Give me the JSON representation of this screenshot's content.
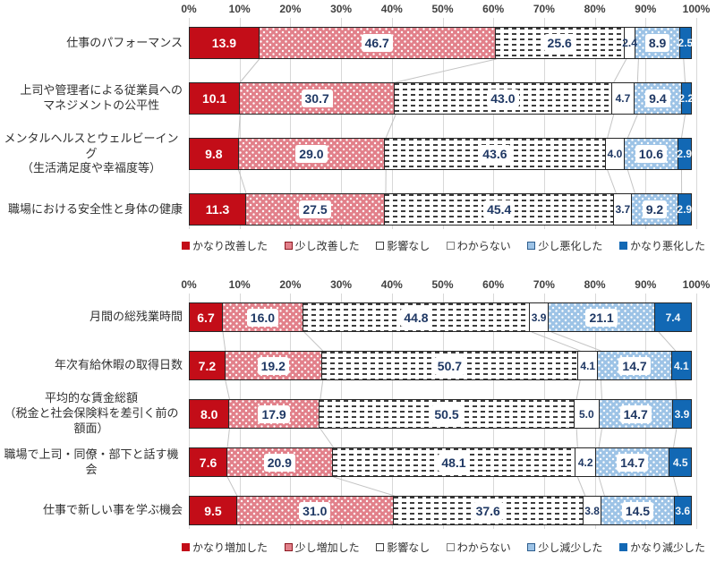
{
  "page": {
    "background": "#FFFFFF"
  },
  "colors": {
    "strong_red": "#C30D18",
    "light_red_dotted": "#E2808A",
    "light_blue_dotted": "#9DC3E6",
    "strong_blue": "#1268B4",
    "value_text_navy": "#1F3864",
    "axis_text": "#404040",
    "gridline": "#D8D8D8",
    "connector_line": "#C4C4C4",
    "segment_border": "#262626"
  },
  "segment_styles": [
    {
      "pattern": "solid",
      "fill": "#C30D18",
      "label_style": "white"
    },
    {
      "pattern": "white-dots",
      "fill": "#E2808A",
      "label_style": "boxed"
    },
    {
      "pattern": "dashes",
      "fill": "#FFFFFF",
      "label_style": "boxed"
    },
    {
      "pattern": "plain",
      "fill": "#FFFFFF",
      "label_style": "plain"
    },
    {
      "pattern": "white-dots",
      "fill": "#9DC3E6",
      "label_style": "boxed"
    },
    {
      "pattern": "solid",
      "fill": "#1268B4",
      "label_style": "white-small"
    }
  ],
  "chart_data": [
    {
      "type": "bar",
      "orientation": "horizontal",
      "stacked": true,
      "xlim": [
        0,
        100
      ],
      "x_ticks": [
        "0%",
        "10%",
        "20%",
        "30%",
        "40%",
        "50%",
        "60%",
        "70%",
        "80%",
        "90%",
        "100%"
      ],
      "grid": "vertical",
      "legend_position": "bottom",
      "categories": [
        "仕事のパフォーマンス",
        "上司や管理者による従業員へのマネジメントの公平性",
        "メンタルヘルスとウェルビーイング（生活満足度や幸福度等）",
        "職場における安全性と身体の健康"
      ],
      "categories_display": [
        [
          "仕事のパフォーマンス"
        ],
        [
          "上司や管理者による従業員への",
          "マネジメントの公平性"
        ],
        [
          "メンタルヘルスとウェルビーイング",
          "（生活満足度や幸福度等）"
        ],
        [
          "職場における安全性と身体の健康"
        ]
      ],
      "series": [
        {
          "name": "かなり改善した",
          "values": [
            13.9,
            10.1,
            9.8,
            11.3
          ]
        },
        {
          "name": "少し改善した",
          "values": [
            46.7,
            30.7,
            29.0,
            27.5
          ]
        },
        {
          "name": "影響なし",
          "values": [
            25.6,
            43.0,
            43.6,
            45.4
          ]
        },
        {
          "name": "わからない",
          "values": [
            2.4,
            4.7,
            4.0,
            3.7
          ]
        },
        {
          "name": "少し悪化した",
          "values": [
            8.9,
            9.4,
            10.6,
            9.2
          ]
        },
        {
          "name": "かなり悪化した",
          "values": [
            2.5,
            2.2,
            2.9,
            2.9
          ]
        }
      ]
    },
    {
      "type": "bar",
      "orientation": "horizontal",
      "stacked": true,
      "xlim": [
        0,
        100
      ],
      "x_ticks": [
        "0%",
        "10%",
        "20%",
        "30%",
        "40%",
        "50%",
        "60%",
        "70%",
        "80%",
        "90%",
        "100%"
      ],
      "grid": "vertical",
      "legend_position": "bottom",
      "categories": [
        "月間の総残業時間",
        "年次有給休暇の取得日数",
        "平均的な賃金総額（税金と社会保険料を差引く前の額面）",
        "職場で上司・同僚・部下と話す機会",
        "仕事で新しい事を学ぶ機会"
      ],
      "categories_display": [
        [
          "月間の総残業時間"
        ],
        [
          "年次有給休暇の取得日数"
        ],
        [
          "平均的な賃金総額",
          "（税金と社会保険料を差引く前の額面）"
        ],
        [
          "職場で上司・同僚・部下と話す機会"
        ],
        [
          "仕事で新しい事を学ぶ機会"
        ]
      ],
      "series": [
        {
          "name": "かなり増加した",
          "values": [
            6.7,
            7.2,
            8.0,
            7.6,
            9.5
          ]
        },
        {
          "name": "少し増加した",
          "values": [
            16.0,
            19.2,
            17.9,
            20.9,
            31.0
          ]
        },
        {
          "name": "影響なし",
          "values": [
            44.8,
            50.7,
            50.5,
            48.1,
            37.6
          ]
        },
        {
          "name": "わからない",
          "values": [
            3.9,
            4.1,
            5.0,
            4.2,
            3.8
          ]
        },
        {
          "name": "少し減少した",
          "values": [
            21.1,
            14.7,
            14.7,
            14.7,
            14.5
          ]
        },
        {
          "name": "かなり減少した",
          "values": [
            7.4,
            4.1,
            3.9,
            4.5,
            3.6
          ]
        }
      ]
    }
  ]
}
